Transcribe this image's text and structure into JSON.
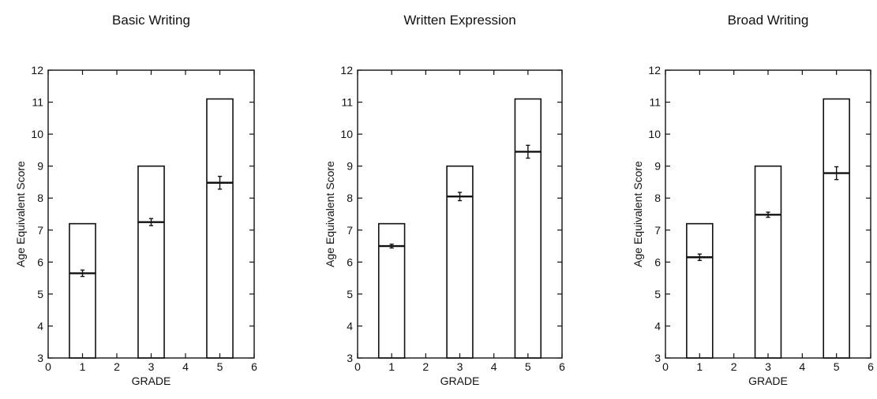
{
  "chart_data": [
    {
      "type": "bar",
      "title": "Basic Writing",
      "xlabel": "GRADE",
      "ylabel": "Age Equivalent Score",
      "xlim": [
        0,
        6
      ],
      "ylim": [
        3,
        12
      ],
      "xticks": [
        "0",
        "1",
        "2",
        "3",
        "4",
        "5",
        "6"
      ],
      "yticks": [
        "3",
        "4",
        "5",
        "6",
        "7",
        "8",
        "9",
        "10",
        "11",
        "12"
      ],
      "grid": false,
      "series": [
        {
          "name": "",
          "x": [
            1,
            3,
            5
          ],
          "bar_top": [
            7.2,
            9.0,
            11.1
          ],
          "mean": [
            5.65,
            7.25,
            8.48
          ],
          "error": [
            0.1,
            0.11,
            0.2
          ]
        }
      ]
    },
    {
      "type": "bar",
      "title": "Written Expression",
      "xlabel": "GRADE",
      "ylabel": "Age Equivalent Score",
      "xlim": [
        0,
        6
      ],
      "ylim": [
        3,
        12
      ],
      "xticks": [
        "0",
        "1",
        "2",
        "3",
        "4",
        "5",
        "6"
      ],
      "yticks": [
        "3",
        "4",
        "5",
        "6",
        "7",
        "8",
        "9",
        "10",
        "11",
        "12"
      ],
      "grid": false,
      "series": [
        {
          "name": "",
          "x": [
            1,
            3,
            5
          ],
          "bar_top": [
            7.2,
            9.0,
            11.1
          ],
          "mean": [
            6.5,
            8.05,
            9.45
          ],
          "error": [
            0.06,
            0.13,
            0.2
          ]
        }
      ]
    },
    {
      "type": "bar",
      "title": "Broad Writing",
      "xlabel": "GRADE",
      "ylabel": "Age Equivalent Score",
      "xlim": [
        0,
        6
      ],
      "ylim": [
        3,
        12
      ],
      "xticks": [
        "0",
        "1",
        "2",
        "3",
        "4",
        "5",
        "6"
      ],
      "yticks": [
        "3",
        "4",
        "5",
        "6",
        "7",
        "8",
        "9",
        "10",
        "11",
        "12"
      ],
      "grid": false,
      "series": [
        {
          "name": "",
          "x": [
            1,
            3,
            5
          ],
          "bar_top": [
            7.2,
            9.0,
            11.1
          ],
          "mean": [
            6.15,
            7.48,
            8.78
          ],
          "error": [
            0.1,
            0.08,
            0.2
          ]
        }
      ]
    }
  ]
}
